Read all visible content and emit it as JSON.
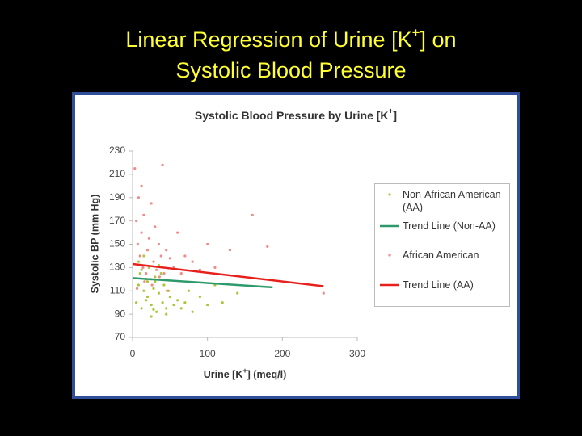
{
  "chart_data": {
    "type": "scatter",
    "heading": [
      "Linear Regression of Urine [K",
      "+",
      "] on",
      "Systolic Blood Pressure"
    ],
    "title": [
      "Systolic Blood Pressure by Urine [K",
      "+",
      "]"
    ],
    "xlabel": [
      "Urine [K",
      "+",
      "] (meq/l)"
    ],
    "ylabel": "Systolic BP (mm Hg)",
    "xlim": [
      0,
      300
    ],
    "xticks": [
      0,
      100,
      200,
      300
    ],
    "ylim": [
      70,
      230
    ],
    "yticks": [
      70,
      90,
      110,
      130,
      150,
      170,
      190,
      210,
      230
    ],
    "grid": false,
    "legend": "right",
    "series": [
      {
        "name": "Non-African American (AA)",
        "type": "scatter",
        "color": "#a8c83c",
        "x": [
          5,
          8,
          10,
          12,
          15,
          18,
          20,
          22,
          25,
          28,
          30,
          32,
          35,
          38,
          40,
          42,
          45,
          48,
          50,
          55,
          60,
          65,
          70,
          75,
          80,
          90,
          100,
          110,
          120,
          140,
          8,
          15,
          25,
          35,
          45,
          12,
          20,
          30,
          18,
          28
        ],
        "values": [
          100,
          115,
          125,
          95,
          110,
          120,
          105,
          130,
          98,
          112,
          118,
          92,
          108,
          125,
          100,
          115,
          95,
          110,
          105,
          98,
          102,
          95,
          100,
          110,
          92,
          105,
          98,
          115,
          100,
          108,
          135,
          140,
          88,
          132,
          90,
          128,
          118,
          122,
          102,
          94
        ]
      },
      {
        "name": "Trend Line (Non-AA)",
        "type": "line",
        "color": "#2e9a6b",
        "x": [
          0,
          187
        ],
        "values": [
          121,
          113
        ]
      },
      {
        "name": "African American",
        "type": "scatter",
        "color": "#f38a8a",
        "x": [
          3,
          5,
          7,
          8,
          10,
          12,
          14,
          15,
          18,
          20,
          22,
          24,
          25,
          28,
          30,
          32,
          35,
          38,
          40,
          42,
          45,
          50,
          55,
          60,
          65,
          70,
          80,
          90,
          100,
          110,
          130,
          160,
          180,
          255,
          6,
          16,
          26,
          36,
          46,
          12
        ],
        "values": [
          215,
          170,
          150,
          190,
          140,
          160,
          130,
          175,
          125,
          145,
          155,
          120,
          185,
          135,
          165,
          128,
          150,
          140,
          218,
          125,
          145,
          138,
          130,
          160,
          125,
          140,
          135,
          128,
          150,
          130,
          145,
          175,
          148,
          108,
          112,
          118,
          115,
          122,
          110,
          200
        ]
      },
      {
        "name": "Trend Line (AA)",
        "type": "line",
        "color": "#e8201c",
        "x": [
          0,
          255
        ],
        "values": [
          133,
          114
        ]
      }
    ]
  }
}
